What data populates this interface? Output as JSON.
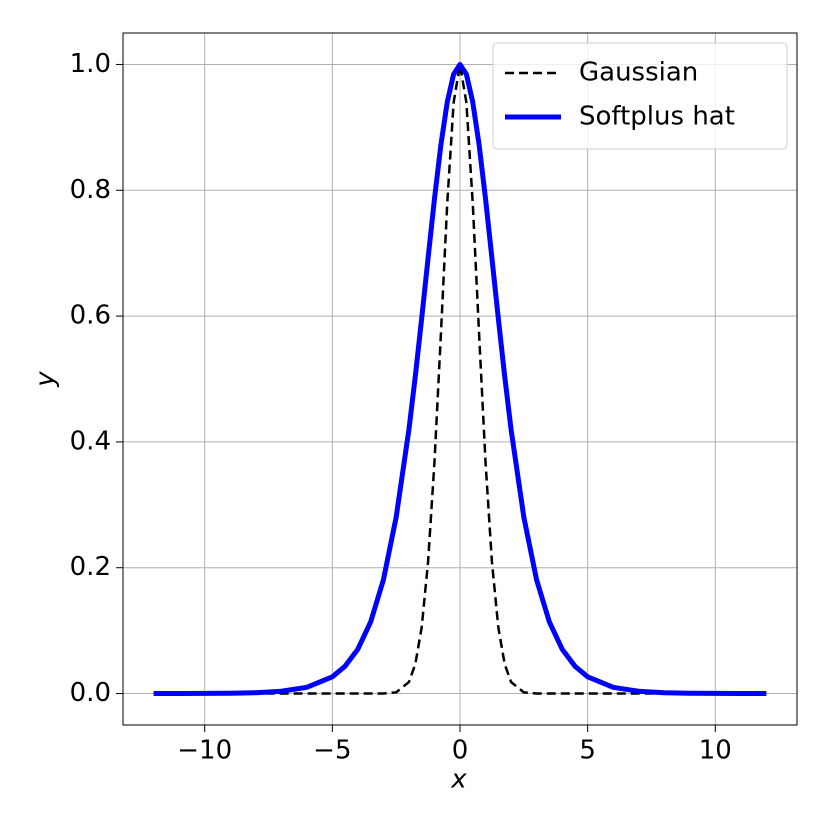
{
  "chart_data": {
    "type": "line",
    "x_label": "x",
    "y_label": "y",
    "x": [
      -12,
      -11,
      -10,
      -9,
      -8,
      -7,
      -6,
      -5,
      -4.5,
      -4,
      -3.5,
      -3,
      -2.5,
      -2,
      -1.75,
      -1.5,
      -1.25,
      -1,
      -0.75,
      -0.5,
      -0.25,
      0,
      0.25,
      0.5,
      0.75,
      1,
      1.25,
      1.5,
      1.75,
      2,
      2.5,
      3,
      3.5,
      4,
      4.5,
      5,
      6,
      7,
      8,
      9,
      10,
      11,
      12
    ],
    "series": [
      {
        "name": "Gaussian",
        "color": "#000000",
        "linestyle": "dashed",
        "values": [
          0,
          0,
          0,
          0,
          0,
          0,
          0,
          0,
          0,
          0,
          0,
          0.0001,
          0.0019,
          0.0183,
          0.0468,
          0.1054,
          0.2096,
          0.3679,
          0.5698,
          0.7788,
          0.9394,
          1,
          0.9394,
          0.7788,
          0.5698,
          0.3679,
          0.2096,
          0.1054,
          0.0468,
          0.0183,
          0.0019,
          0.0001,
          0,
          0,
          0,
          0,
          0,
          0,
          0,
          0,
          0,
          0,
          0
        ]
      },
      {
        "name": "Softplus hat",
        "color": "#0000ff",
        "linestyle": "solid",
        "values": [
          0,
          0.0001,
          0.0002,
          0.0005,
          0.0013,
          0.0036,
          0.0099,
          0.0266,
          0.0435,
          0.0707,
          0.1138,
          0.1807,
          0.2804,
          0.42,
          0.5045,
          0.5966,
          0.6924,
          0.7864,
          0.8717,
          0.94,
          0.9845,
          1,
          0.9845,
          0.94,
          0.8717,
          0.7864,
          0.6924,
          0.5966,
          0.5045,
          0.42,
          0.2804,
          0.1807,
          0.1138,
          0.0707,
          0.0435,
          0.0266,
          0.0099,
          0.0036,
          0.0013,
          0.0005,
          0.0002,
          0.0001,
          0
        ]
      }
    ],
    "xlim": [
      -13.2,
      13.2
    ],
    "ylim": [
      -0.05,
      1.05
    ],
    "xticks": [
      {
        "value": -10,
        "label": "−10"
      },
      {
        "value": -5,
        "label": "−5"
      },
      0,
      5,
      10
    ],
    "yticks": [
      {
        "value": 0,
        "label": "0.0"
      },
      0.2,
      0.4,
      0.6,
      0.8,
      {
        "value": 1,
        "label": "1.0"
      }
    ],
    "grid": true,
    "legend": "upper right"
  }
}
